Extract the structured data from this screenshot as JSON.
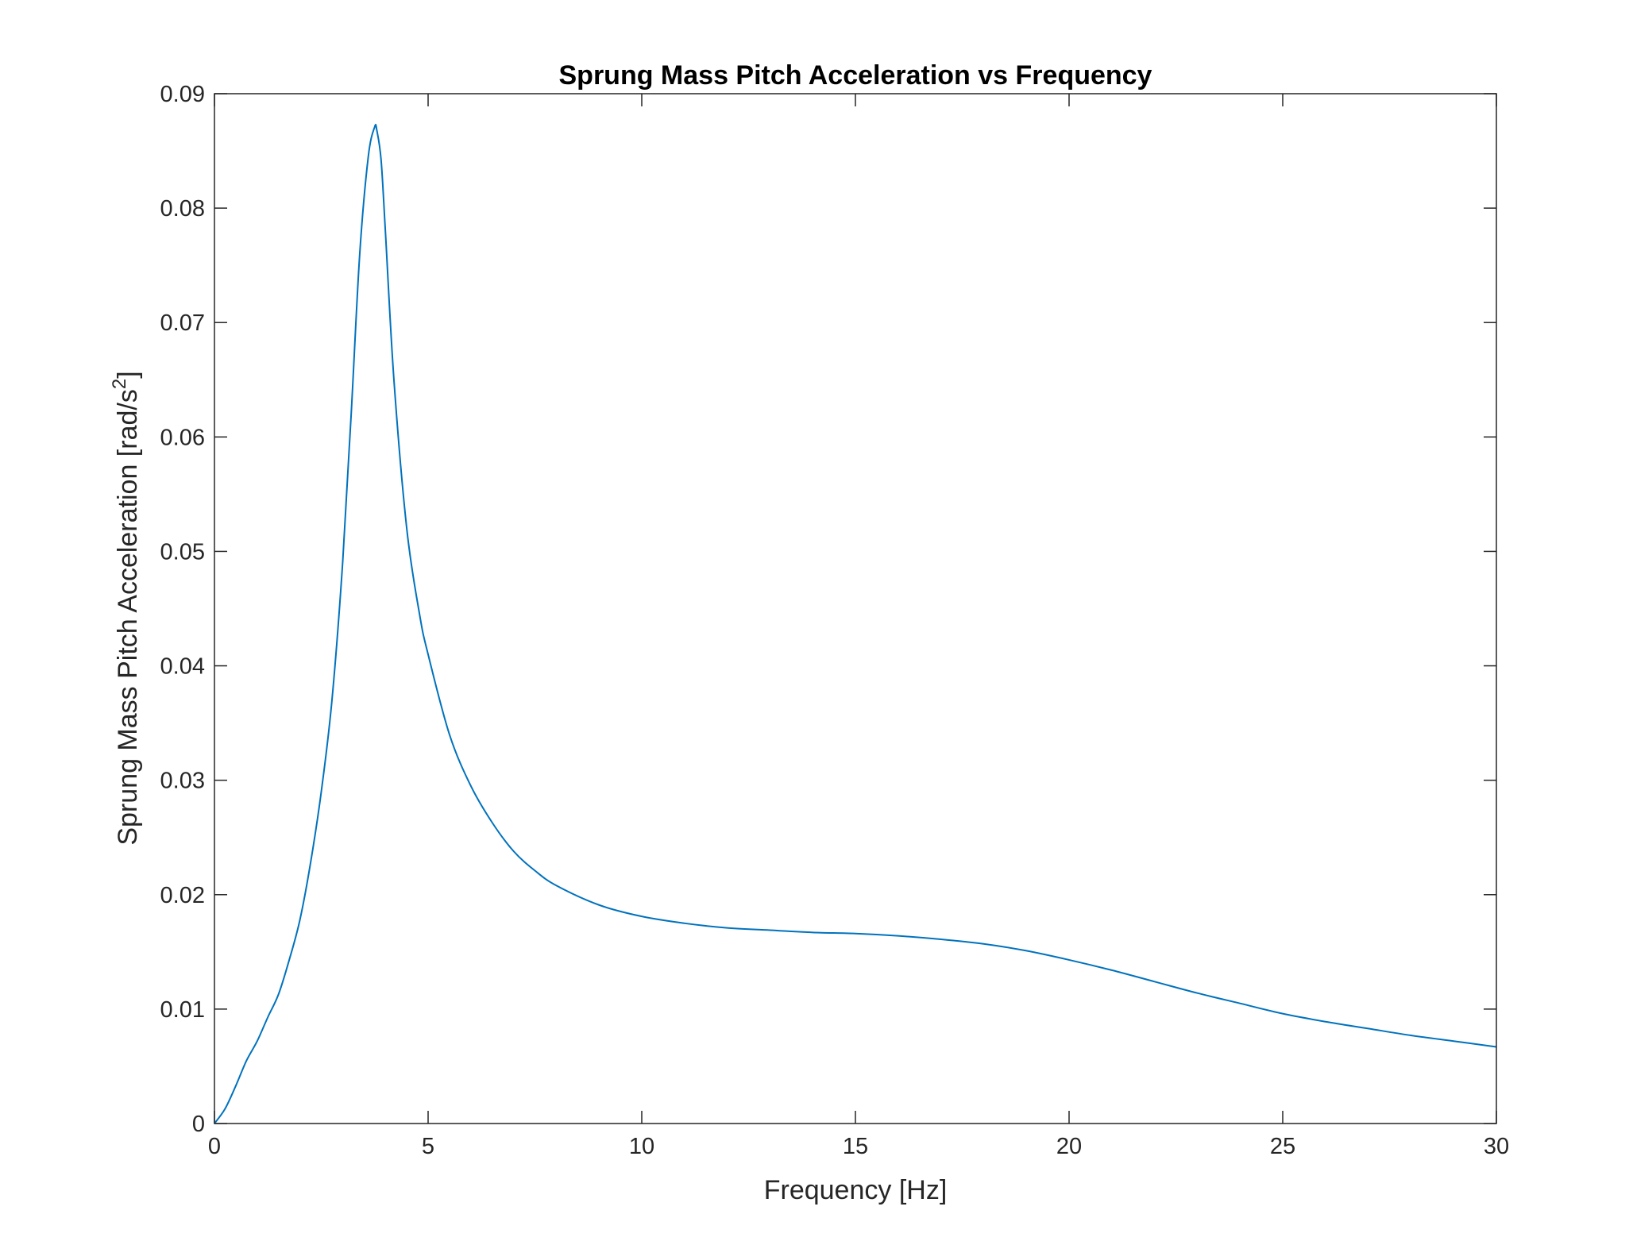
{
  "chart_data": {
    "type": "line",
    "title": "Sprung Mass Pitch Acceleration vs Frequency",
    "xlabel": "Frequency [Hz]",
    "ylabel_main": "Sprung Mass Pitch Acceleration [rad/s",
    "ylabel_sup": "2",
    "ylabel_end": "]",
    "xlim": [
      0,
      30
    ],
    "ylim": [
      0,
      0.09
    ],
    "xticks": [
      0,
      5,
      10,
      15,
      20,
      25,
      30
    ],
    "xtick_labels": [
      "0",
      "5",
      "10",
      "15",
      "20",
      "25",
      "30"
    ],
    "yticks": [
      0,
      0.01,
      0.02,
      0.03,
      0.04,
      0.05,
      0.06,
      0.07,
      0.08,
      0.09
    ],
    "ytick_labels": [
      "0",
      "0.01",
      "0.02",
      "0.03",
      "0.04",
      "0.05",
      "0.06",
      "0.07",
      "0.08",
      "0.09"
    ],
    "grid": false,
    "line_color": "#0072BD",
    "series": [
      {
        "x": [
          0,
          0.25,
          0.5,
          0.75,
          1.0,
          1.25,
          1.5,
          1.75,
          2.0,
          2.25,
          2.5,
          2.75,
          3.0,
          3.2,
          3.4,
          3.6,
          3.75,
          3.8,
          3.9,
          4.0,
          4.2,
          4.5,
          4.8,
          5.0,
          5.5,
          6.0,
          6.5,
          7.0,
          7.5,
          8.0,
          9.0,
          10.0,
          11.0,
          12.0,
          13.0,
          14.0,
          15.0,
          16.0,
          17.0,
          18.0,
          19.0,
          20.0,
          21.0,
          22.0,
          23.0,
          24.0,
          25.0,
          26.0,
          27.0,
          28.0,
          29.0,
          30.0
        ],
        "y": [
          0,
          0.0013,
          0.0033,
          0.0055,
          0.0072,
          0.0093,
          0.0113,
          0.0143,
          0.0178,
          0.0228,
          0.029,
          0.037,
          0.049,
          0.062,
          0.076,
          0.0845,
          0.0871,
          0.0868,
          0.0842,
          0.078,
          0.065,
          0.052,
          0.0445,
          0.041,
          0.034,
          0.0295,
          0.0263,
          0.0238,
          0.0221,
          0.0208,
          0.0191,
          0.0181,
          0.0175,
          0.0171,
          0.0169,
          0.0167,
          0.0166,
          0.0164,
          0.0161,
          0.0157,
          0.0151,
          0.0143,
          0.0134,
          0.0124,
          0.0114,
          0.0105,
          0.0096,
          0.0089,
          0.0083,
          0.0077,
          0.0072,
          0.0067
        ]
      }
    ]
  }
}
